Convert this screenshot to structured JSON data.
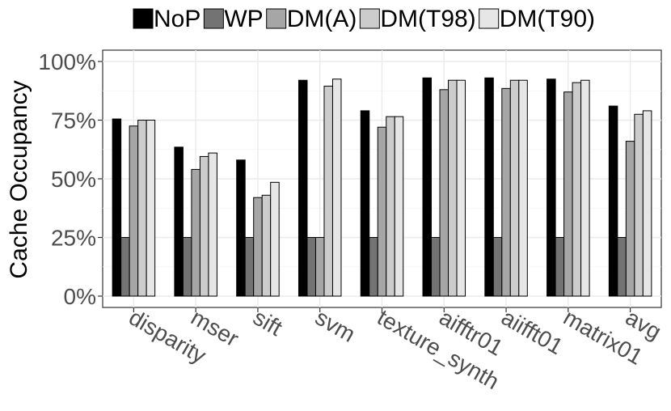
{
  "chart_data": {
    "type": "bar",
    "title": "",
    "xlabel": "",
    "ylabel": "Cache Occupancy",
    "ylim": [
      0,
      100
    ],
    "yticks": [
      "0%",
      "25%",
      "50%",
      "75%",
      "100%"
    ],
    "ytick_values": [
      0,
      25,
      50,
      75,
      100
    ],
    "grid": true,
    "legend_position": "top",
    "categories": [
      "disparity",
      "mser",
      "sift",
      "svm",
      "texture_synth",
      "aifftr01",
      "aiifft01",
      "matrix01",
      "avg"
    ],
    "series": [
      {
        "name": "NoP",
        "color": "#000000",
        "values": [
          75.5,
          63.5,
          58,
          92,
          79,
          93,
          93,
          92.5,
          81
        ]
      },
      {
        "name": "WP",
        "color": "#737373",
        "values": [
          25,
          25,
          25,
          25,
          25,
          25,
          25,
          25,
          25
        ]
      },
      {
        "name": "DM(A)",
        "color": "#a6a6a6",
        "values": [
          72.5,
          54,
          42,
          25,
          72,
          88,
          88.5,
          87,
          66
        ]
      },
      {
        "name": "DM(T98)",
        "color": "#cccccc",
        "values": [
          75,
          59.5,
          43,
          89.5,
          76.5,
          92,
          92,
          91,
          77.5
        ]
      },
      {
        "name": "DM(T90)",
        "color": "#e6e6e6",
        "values": [
          75,
          61,
          48.5,
          92.5,
          76.5,
          92,
          92,
          92,
          79
        ]
      }
    ]
  }
}
